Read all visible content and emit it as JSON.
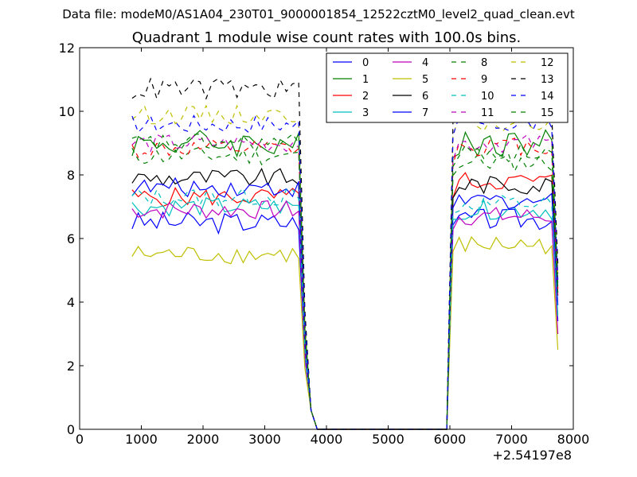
{
  "suptitle": "Data file: modeM0/AS1A04_230T01_9000001854_12522cztM0_level2_quad_clean.evt",
  "chart_data": {
    "type": "line",
    "title": "Quadrant 1 module wise count rates with 100.0s bins.",
    "xlabel": "",
    "ylabel": "",
    "x_offset_label": "+2.54197e8",
    "xlim": [
      0,
      8000
    ],
    "ylim": [
      0,
      12
    ],
    "xticks": [
      0,
      1000,
      2000,
      3000,
      4000,
      5000,
      6000,
      7000,
      8000
    ],
    "yticks": [
      0,
      2,
      4,
      6,
      8,
      10,
      12
    ],
    "grid": false,
    "legend_position": "top-right",
    "legend_columns": 4,
    "x": [
      850,
      950,
      1050,
      1150,
      1250,
      1350,
      1450,
      1550,
      1650,
      1750,
      1850,
      1950,
      2050,
      2150,
      2250,
      2350,
      2450,
      2550,
      2650,
      2750,
      2850,
      2950,
      3050,
      3150,
      3250,
      3350,
      3450,
      3550,
      3650,
      3750,
      3850,
      3950,
      4050,
      4150,
      4250,
      4350,
      4450,
      4550,
      4650,
      4750,
      4850,
      4950,
      5050,
      5150,
      5250,
      5350,
      5450,
      5550,
      5650,
      5750,
      5850,
      5950,
      6050,
      6150,
      6250,
      6350,
      6450,
      6550,
      6650,
      6750,
      6850,
      6950,
      7050,
      7150,
      7250,
      7350,
      7450,
      7550,
      7650,
      7750
    ],
    "series": [
      {
        "name": "0",
        "color": "#0000ff",
        "dash": "solid",
        "plateau1": 6.5,
        "plateau2": 6.6,
        "amp": 0.35,
        "end": 3.4
      },
      {
        "name": "1",
        "color": "#008000",
        "dash": "solid",
        "plateau1": 9.0,
        "plateau2": 9.0,
        "amp": 0.45,
        "end": 4.6
      },
      {
        "name": "2",
        "color": "#ff0000",
        "dash": "solid",
        "plateau1": 7.3,
        "plateau2": 7.8,
        "amp": 0.3,
        "end": 4.2
      },
      {
        "name": "3",
        "color": "#00bfbf",
        "dash": "solid",
        "plateau1": 7.0,
        "plateau2": 6.9,
        "amp": 0.3,
        "end": 3.6
      },
      {
        "name": "4",
        "color": "#bf00bf",
        "dash": "solid",
        "plateau1": 6.9,
        "plateau2": 6.7,
        "amp": 0.3,
        "end": 3.0
      },
      {
        "name": "5",
        "color": "#bfbf00",
        "dash": "solid",
        "plateau1": 5.5,
        "plateau2": 5.8,
        "amp": 0.3,
        "end": 2.5
      },
      {
        "name": "6",
        "color": "#000000",
        "dash": "solid",
        "plateau1": 7.9,
        "plateau2": 7.7,
        "amp": 0.3,
        "end": 4.9
      },
      {
        "name": "7",
        "color": "#0000ff",
        "dash": "solid",
        "plateau1": 7.6,
        "plateau2": 7.2,
        "amp": 0.3,
        "end": 3.9
      },
      {
        "name": "8",
        "color": "#008000",
        "dash": "dashed",
        "plateau1": 8.6,
        "plateau2": 8.4,
        "amp": 0.3,
        "end": 4.3
      },
      {
        "name": "9",
        "color": "#ff0000",
        "dash": "dashed",
        "plateau1": 8.8,
        "plateau2": 8.9,
        "amp": 0.3,
        "end": 4.4
      },
      {
        "name": "10",
        "color": "#00bfbf",
        "dash": "dashed",
        "plateau1": 7.3,
        "plateau2": 7.1,
        "amp": 0.3,
        "end": 3.5
      },
      {
        "name": "11",
        "color": "#bf00bf",
        "dash": "dashed",
        "plateau1": 9.0,
        "plateau2": 9.0,
        "amp": 0.3,
        "end": 4.5
      },
      {
        "name": "12",
        "color": "#bfbf00",
        "dash": "dashed",
        "plateau1": 9.9,
        "plateau2": 9.6,
        "amp": 0.3,
        "end": 4.8
      },
      {
        "name": "13",
        "color": "#000000",
        "dash": "dashed",
        "plateau1": 10.7,
        "plateau2": 10.2,
        "amp": 0.35,
        "end": 5.2
      },
      {
        "name": "14",
        "color": "#0000ff",
        "dash": "dashed",
        "plateau1": 9.6,
        "plateau2": 9.6,
        "amp": 0.3,
        "end": 4.7
      },
      {
        "name": "15",
        "color": "#008000",
        "dash": "dashed",
        "plateau1": 9.0,
        "plateau2": 8.7,
        "amp": 0.3,
        "end": 4.4
      }
    ]
  }
}
